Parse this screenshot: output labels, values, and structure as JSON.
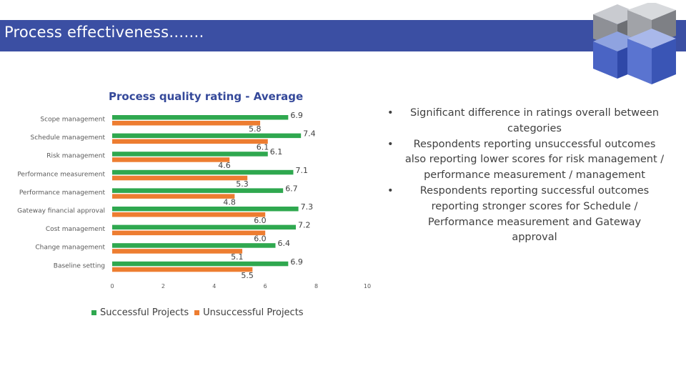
{
  "slide": {
    "title": "Process effectiveness…….",
    "colors": {
      "title_bar": "#3b4fa3",
      "chart_title": "#35499a",
      "successful": "#2fa84f",
      "unsuccessful": "#ed7d31"
    }
  },
  "chart_data": {
    "type": "bar",
    "orientation": "horizontal",
    "title": "Process quality rating - Average",
    "categories": [
      "Scope management",
      "Schedule management",
      "Risk management",
      "Performance measurement",
      "Performance management",
      "Gateway financial approval",
      "Cost management",
      "Change management",
      "Baseline setting"
    ],
    "series": [
      {
        "name": "Successful Projects",
        "color": "#2fa84f",
        "values": [
          6.9,
          7.4,
          6.1,
          7.1,
          6.7,
          7.3,
          7.2,
          6.4,
          6.9
        ]
      },
      {
        "name": "Unsuccessful Projects",
        "color": "#ed7d31",
        "values": [
          5.8,
          6.1,
          4.6,
          5.3,
          4.8,
          6.0,
          6.0,
          5.1,
          5.5
        ]
      }
    ],
    "value_labels": {
      "successful": [
        "6.9",
        "7.4",
        "6.1",
        "7.1",
        "6.7",
        "7.3",
        "7.2",
        "6.4",
        "6.9"
      ],
      "unsuccessful": [
        "5.8",
        "6.1",
        "4.6",
        "5.3",
        "4.8",
        "6.0",
        "6.0",
        "5.1",
        "5.5"
      ]
    },
    "x_ticks": [
      0,
      2,
      4,
      6,
      8,
      10
    ],
    "x_tick_labels": [
      "0",
      "2",
      "4",
      "6",
      "8",
      "10"
    ],
    "xlim": [
      0,
      10
    ],
    "grid": false,
    "legend_position": "bottom",
    "legend": [
      "Successful Projects",
      "Unsuccessful Projects"
    ]
  },
  "bullets": [
    "Significant difference in ratings overall between categories",
    "Respondents reporting unsuccessful outcomes also reporting lower scores for risk management / performance measurement / management",
    "Respondents reporting successful outcomes reporting stronger scores for Schedule / Performance measurement and Gateway approval"
  ],
  "bullet_marker": "•",
  "icons": {
    "logo": "cube-logo-icon"
  }
}
